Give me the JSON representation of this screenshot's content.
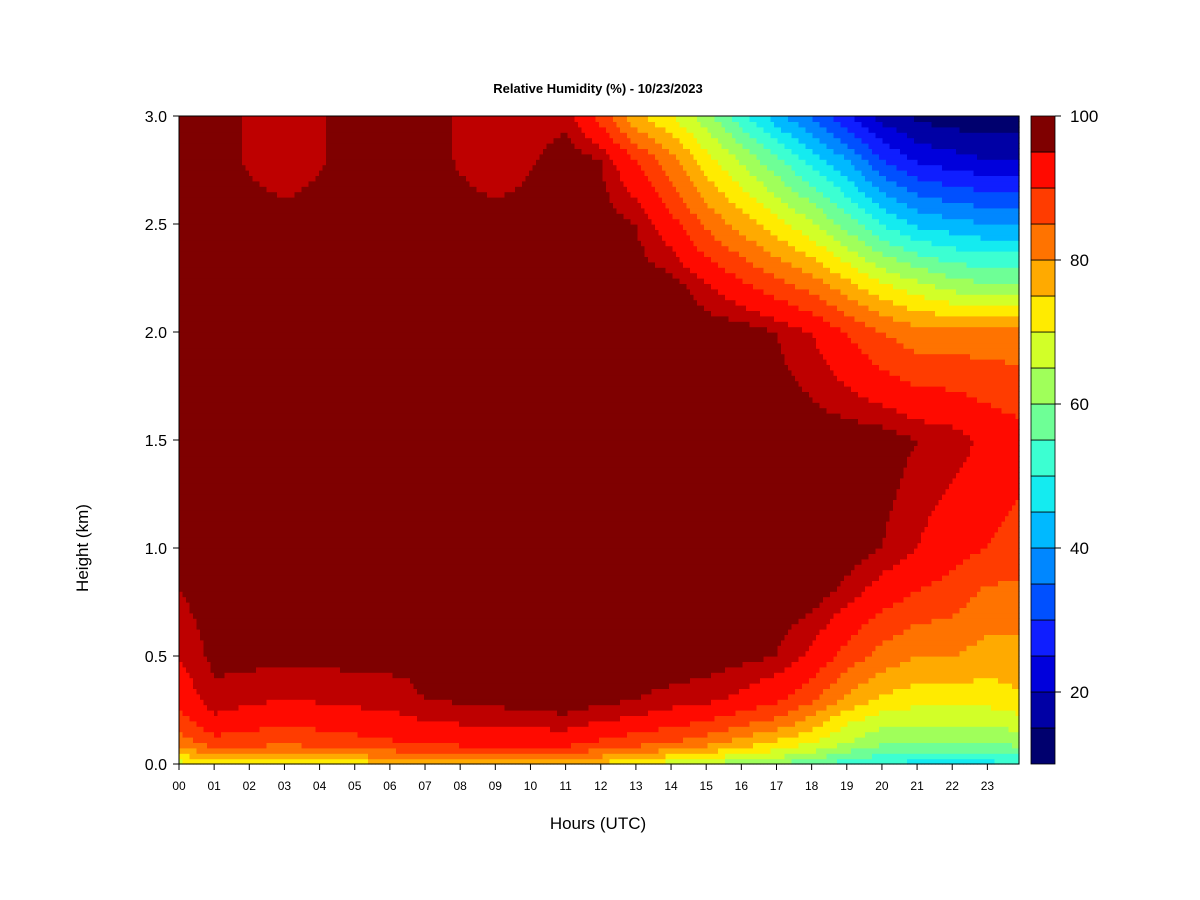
{
  "chart_data": {
    "type": "heatmap",
    "title": "Relative Humidity (%) - 10/23/2023",
    "xlabel": "Hours (UTC)",
    "ylabel": "Height (km)",
    "x_ticks": [
      "00",
      "01",
      "02",
      "03",
      "04",
      "05",
      "06",
      "07",
      "08",
      "09",
      "10",
      "11",
      "12",
      "13",
      "14",
      "15",
      "16",
      "17",
      "18",
      "19",
      "20",
      "21",
      "22",
      "23"
    ],
    "xlim": [
      0,
      23.9
    ],
    "y_ticks": [
      "0.0",
      "0.5",
      "1.0",
      "1.5",
      "2.0",
      "2.5",
      "3.0"
    ],
    "ylim": [
      0,
      3.0
    ],
    "colorbar": {
      "ticks": [
        "20",
        "40",
        "60",
        "80",
        "100"
      ],
      "range": [
        10,
        100
      ],
      "step": 5,
      "levels": [
        {
          "min": 10,
          "color": "#00006e"
        },
        {
          "min": 15,
          "color": "#0000a5"
        },
        {
          "min": 20,
          "color": "#0000dc"
        },
        {
          "min": 25,
          "color": "#0f1eff"
        },
        {
          "min": 30,
          "color": "#0050ff"
        },
        {
          "min": 35,
          "color": "#0087ff"
        },
        {
          "min": 40,
          "color": "#00b9ff"
        },
        {
          "min": 45,
          "color": "#14ebf0"
        },
        {
          "min": 50,
          "color": "#3cffd2"
        },
        {
          "min": 55,
          "color": "#6eff96"
        },
        {
          "min": 60,
          "color": "#a0ff5a"
        },
        {
          "min": 65,
          "color": "#d2ff28"
        },
        {
          "min": 70,
          "color": "#ffeb00"
        },
        {
          "min": 75,
          "color": "#ffaa00"
        },
        {
          "min": 80,
          "color": "#ff7300"
        },
        {
          "min": 85,
          "color": "#ff3c00"
        },
        {
          "min": 90,
          "color": "#ff0a00"
        },
        {
          "min": 95,
          "color": "#be0000"
        },
        {
          "min": 98,
          "color": "#7f0000"
        }
      ]
    },
    "profile_hours": [
      0,
      1,
      3,
      5,
      6.5,
      7,
      9,
      11,
      12,
      13,
      14,
      15,
      16,
      17,
      18,
      19,
      20,
      21,
      22,
      23,
      23.9
    ],
    "profile_heights": [
      0.0,
      0.05,
      0.1,
      0.2,
      0.3,
      0.5,
      0.8,
      1.0,
      1.5,
      2.0,
      2.2,
      2.5,
      2.8,
      3.0
    ],
    "values": [
      [
        68,
        75,
        82,
        88,
        92,
        95,
        98,
        100,
        100,
        100,
        100,
        100,
        100,
        100
      ],
      [
        72,
        82,
        88,
        94,
        97,
        99,
        100,
        100,
        100,
        100,
        100,
        100,
        100,
        100
      ],
      [
        72,
        80,
        86,
        91,
        95,
        99,
        100,
        100,
        100,
        100,
        100,
        100,
        95,
        95
      ],
      [
        72,
        82,
        88,
        93,
        96,
        99,
        100,
        100,
        100,
        100,
        100,
        100,
        100,
        100
      ],
      [
        74,
        84,
        90,
        94,
        97,
        99,
        100,
        100,
        100,
        100,
        100,
        100,
        100,
        100
      ],
      [
        76,
        85,
        91,
        95,
        98,
        100,
        100,
        100,
        100,
        100,
        100,
        100,
        100,
        100
      ],
      [
        76,
        86,
        92,
        96,
        99,
        100,
        100,
        100,
        100,
        100,
        100,
        100,
        95,
        95
      ],
      [
        78,
        86,
        92,
        97,
        100,
        100,
        100,
        100,
        100,
        100,
        100,
        100,
        100,
        97
      ],
      [
        74,
        82,
        89,
        95,
        99,
        100,
        100,
        100,
        100,
        100,
        100,
        100,
        98,
        88
      ],
      [
        70,
        80,
        87,
        94,
        98,
        100,
        100,
        100,
        100,
        100,
        100,
        98,
        90,
        76
      ],
      [
        67,
        77,
        85,
        92,
        97,
        100,
        100,
        100,
        100,
        100,
        100,
        92,
        82,
        70
      ],
      [
        64,
        74,
        82,
        90,
        96,
        100,
        100,
        100,
        100,
        100,
        96,
        84,
        72,
        62
      ],
      [
        61,
        71,
        78,
        87,
        94,
        99,
        100,
        100,
        100,
        100,
        92,
        78,
        64,
        52
      ],
      [
        59,
        68,
        74,
        84,
        91,
        98,
        100,
        100,
        100,
        98,
        88,
        72,
        56,
        42
      ],
      [
        56,
        64,
        70,
        78,
        86,
        94,
        100,
        100,
        100,
        95,
        84,
        66,
        48,
        34
      ],
      [
        52,
        59,
        65,
        71,
        79,
        88,
        97,
        100,
        100,
        90,
        78,
        58,
        40,
        26
      ],
      [
        49,
        56,
        61,
        67,
        74,
        83,
        93,
        98,
        100,
        85,
        72,
        50,
        30,
        18
      ],
      [
        48,
        55,
        60,
        66,
        72,
        80,
        90,
        95,
        98,
        82,
        68,
        44,
        24,
        14
      ],
      [
        47,
        54,
        60,
        66,
        72,
        80,
        88,
        92,
        97,
        82,
        64,
        42,
        22,
        12
      ],
      [
        48,
        54,
        60,
        66,
        72,
        78,
        84,
        90,
        94,
        82,
        62,
        40,
        20,
        12
      ],
      [
        50,
        56,
        62,
        68,
        74,
        78,
        84,
        88,
        92,
        82,
        62,
        40,
        20,
        12
      ]
    ]
  }
}
